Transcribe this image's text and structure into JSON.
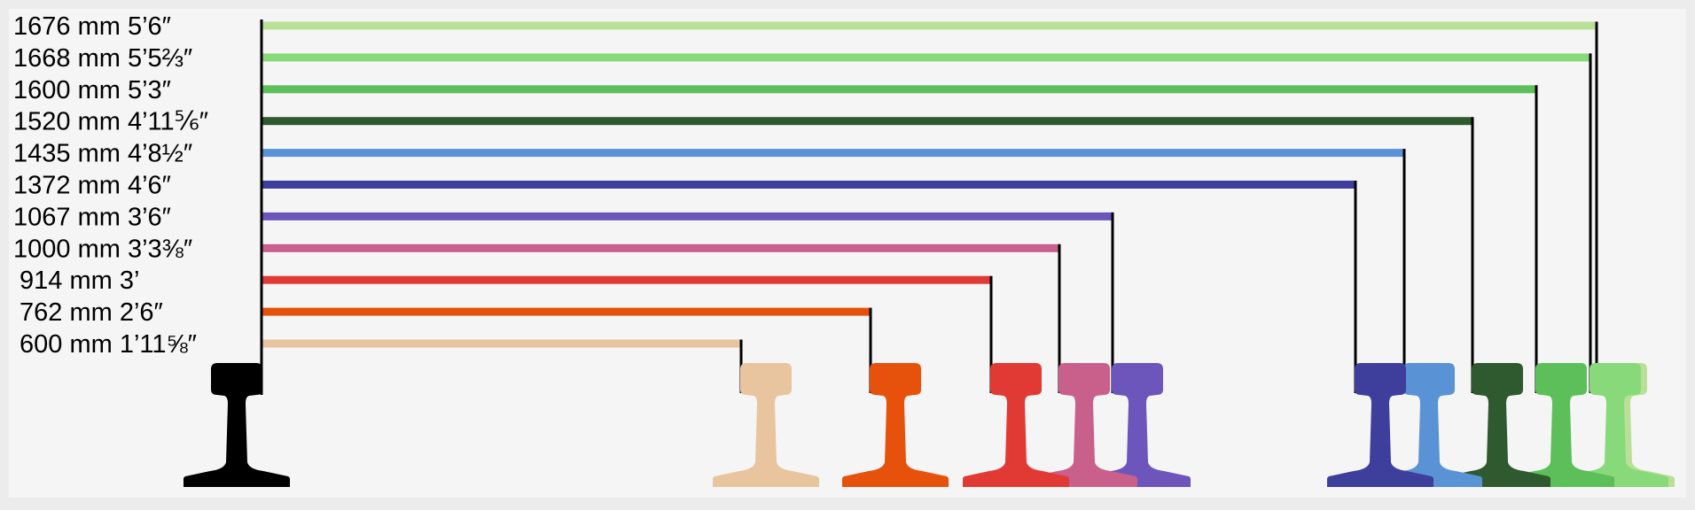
{
  "gauges": [
    {
      "label": "1676 mm 5’6″",
      "color": "#b9e096"
    },
    {
      "label": "1668 mm 5’5⅔″",
      "color": "#88d97a"
    },
    {
      "label": "1600 mm 5’3″",
      "color": "#5cbf5a"
    },
    {
      "label": "1520 mm 4’11⅚″",
      "color": "#2f5a2f"
    },
    {
      "label": "1435 mm 4’8½″",
      "color": "#5a93d5"
    },
    {
      "label": "1372 mm 4’6″",
      "color": "#3e3f9c"
    },
    {
      "label": "1067 mm 3’6″",
      "color": "#6c56bc"
    },
    {
      "label": "1000 mm 3’3⅜″",
      "color": "#c9608c"
    },
    {
      "label": "914 mm 3’",
      "color": "#e13a35"
    },
    {
      "label": "762 mm 2’6″",
      "color": "#e6520b"
    },
    {
      "label": "600 mm 1’11⅝″",
      "color": "#e8c59f"
    }
  ],
  "reference_rail": {
    "color": "#000000"
  }
}
